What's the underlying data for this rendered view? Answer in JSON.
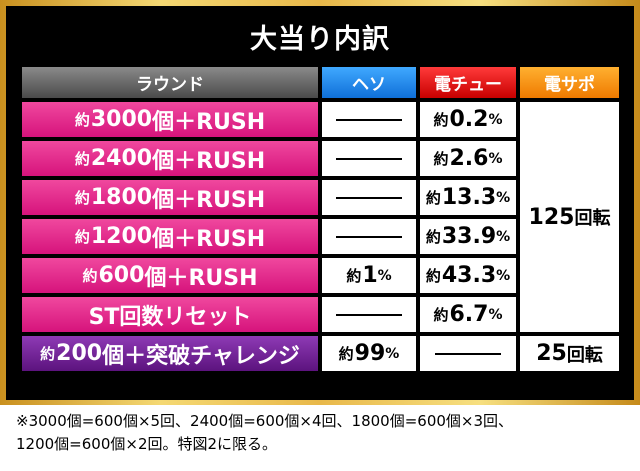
{
  "title": "大当り内訳",
  "headers": {
    "round": "ラウンド",
    "heso": "ヘソ",
    "denchu": "電チュー",
    "densapo": "電サポ"
  },
  "rows": [
    {
      "pre": "約",
      "num": "3000",
      "post": "個＋RUSH",
      "heso": "",
      "denchu_pre": "約",
      "denchu_num": "0.2",
      "denchu_unit": "%"
    },
    {
      "pre": "約",
      "num": "2400",
      "post": "個＋RUSH",
      "heso": "",
      "denchu_pre": "約",
      "denchu_num": "2.6",
      "denchu_unit": "%"
    },
    {
      "pre": "約",
      "num": "1800",
      "post": "個＋RUSH",
      "heso": "",
      "denchu_pre": "約",
      "denchu_num": "13.3",
      "denchu_unit": "%"
    },
    {
      "pre": "約",
      "num": "1200",
      "post": "個＋RUSH",
      "heso": "",
      "denchu_pre": "約",
      "denchu_num": "33.9",
      "denchu_unit": "%"
    },
    {
      "pre": "約",
      "num": "600",
      "post": "個＋RUSH",
      "heso_pre": "約",
      "heso_num": "1",
      "heso_unit": "%",
      "denchu_pre": "約",
      "denchu_num": "43.3",
      "denchu_unit": "%"
    },
    {
      "pre": "",
      "num": "",
      "post": "ST回数リセット",
      "heso": "",
      "denchu_pre": "約",
      "denchu_num": "6.7",
      "denchu_unit": "%"
    },
    {
      "pre": "約",
      "num": "200",
      "post": "個＋突破チャレンジ",
      "heso_pre": "約",
      "heso_num": "99",
      "heso_unit": "%",
      "denchu": ""
    }
  ],
  "densapo": {
    "rush_num": "125",
    "rush_unit": "回転",
    "challenge_num": "25",
    "challenge_unit": "回転"
  },
  "note": {
    "line1": "※3000個=600個×5回、2400個=600個×4回、1800個=600個×3回、",
    "line2": "1200個=600個×2回。特図2に限る。"
  },
  "colors": {
    "round_pink": "#e0237f",
    "round_purple": "#6b1f8f",
    "heso_blue": "#1a86ee",
    "denchu_red": "#e30000",
    "densapo_orange": "#f68f0a",
    "frame_gold": "#e8b84a"
  }
}
